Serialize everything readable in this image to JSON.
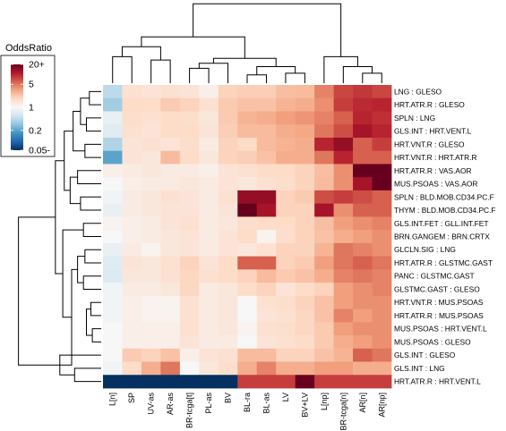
{
  "chart_data": {
    "type": "heatmap",
    "legend": {
      "title": "OddsRatio",
      "labels": [
        "20+",
        "5",
        "1",
        "0.2",
        "0.05-"
      ],
      "label_values": [
        20,
        5,
        1,
        0.2,
        0.05
      ],
      "scale": "log",
      "range": [
        0.05,
        20
      ],
      "colors_low_to_high": [
        "#053061",
        "#2166ac",
        "#4393c3",
        "#92c5de",
        "#d1e5f0",
        "#f7f7f7",
        "#fddbc7",
        "#f4a582",
        "#d6604d",
        "#b2182b",
        "#67001f"
      ]
    },
    "columns": [
      "L[n]",
      "SP",
      "UV-as",
      "AR-as",
      "BR-tcga[t]",
      "PL-as",
      "BV",
      "BL-ra",
      "BL-as",
      "LV",
      "BV+LV",
      "L[np]",
      "BR-tcga[n]",
      "AR[n]",
      "AR[np]"
    ],
    "rows": [
      "LNG : GLESO",
      "HRT.ATR.R : GLESO",
      "SPLN : LNG",
      "GLS.INT : HRT.VENT.L",
      "HRT.VNT.R : GLESO",
      "HRT.VNT.R : HRT.ATR.R",
      "HRT.ATR.R : VAS.AOR",
      "MUS.PSOAS : VAS.AOR",
      "SPLN : BLD.MOB.CD34.PC.F",
      "THYM : BLD.MOB.CD34.PC.F",
      "GLS.INT.FET : GLL.INT.FET",
      "BRN.GANGEM : BRN.CRTX",
      "GLCLN.SIG : LNG",
      "HRT.ATR.R : GLSTMC.GAST",
      "PANC : GLSTMC.GAST",
      "GLSTMC.GAST : GLESO",
      "HRT.VNT.R : MUS.PSOAS",
      "HRT.ATR.R : MUS.PSOAS",
      "MUS.PSOAS : HRT.VENT.L",
      "MUS.PSOAS : GLESO",
      "GLS.INT : GLESO",
      "GLS.INT : LNG",
      "HRT.ATR.R : HRT.VENT.L"
    ],
    "values": [
      [
        0.45,
        1.6,
        1.5,
        1.6,
        1.5,
        1.2,
        2.0,
        2.1,
        2.1,
        2.5,
        2.6,
        4.5,
        7.5,
        8.5,
        7.5
      ],
      [
        0.35,
        1.8,
        1.8,
        2.2,
        2.0,
        1.6,
        2.2,
        2.4,
        2.4,
        2.8,
        3.0,
        4.0,
        8.0,
        9.5,
        10.0
      ],
      [
        0.8,
        1.7,
        1.6,
        1.8,
        1.7,
        1.4,
        2.2,
        2.8,
        3.0,
        3.5,
        3.8,
        4.5,
        6.0,
        10.0,
        9.0
      ],
      [
        0.7,
        1.6,
        1.5,
        1.8,
        1.8,
        1.5,
        2.1,
        2.6,
        2.6,
        3.0,
        3.2,
        5.0,
        7.0,
        12.0,
        10.0
      ],
      [
        0.4,
        1.5,
        1.6,
        1.5,
        1.7,
        1.3,
        2.0,
        1.8,
        2.6,
        2.8,
        3.0,
        10.0,
        14.0,
        6.0,
        8.0
      ],
      [
        0.2,
        1.5,
        1.4,
        2.6,
        1.8,
        1.4,
        2.0,
        2.1,
        2.4,
        3.0,
        3.0,
        5.0,
        10.0,
        6.0,
        6.0
      ],
      [
        1.2,
        1.3,
        1.4,
        1.3,
        1.3,
        1.2,
        1.5,
        1.6,
        1.8,
        1.8,
        2.0,
        2.5,
        4.0,
        20,
        20
      ],
      [
        1.0,
        1.2,
        1.3,
        1.3,
        1.4,
        1.3,
        1.5,
        1.4,
        1.6,
        1.7,
        2.0,
        2.6,
        4.0,
        12.0,
        20
      ],
      [
        0.9,
        1.3,
        1.4,
        1.6,
        1.5,
        1.3,
        1.6,
        14.0,
        14.0,
        2.0,
        2.2,
        7.0,
        8.0,
        7.0,
        6.0
      ],
      [
        0.8,
        1.3,
        1.4,
        1.5,
        1.5,
        1.3,
        1.5,
        20,
        12.0,
        2.0,
        2.0,
        12.0,
        4.0,
        6.0,
        6.0
      ],
      [
        1.1,
        1.2,
        1.3,
        1.5,
        1.6,
        1.3,
        1.4,
        1.7,
        1.8,
        1.8,
        2.0,
        2.5,
        3.5,
        4.0,
        4.5
      ],
      [
        1.0,
        1.2,
        1.3,
        1.4,
        1.5,
        1.3,
        1.5,
        1.8,
        1.1,
        1.7,
        2.0,
        2.4,
        3.0,
        3.5,
        4.0
      ],
      [
        0.8,
        1.3,
        1.1,
        1.4,
        1.5,
        1.3,
        1.5,
        1.4,
        1.6,
        2.0,
        2.0,
        2.8,
        5.0,
        4.5,
        4.0
      ],
      [
        0.7,
        1.5,
        1.4,
        1.6,
        2.0,
        1.5,
        1.8,
        6.0,
        6.0,
        2.0,
        2.2,
        3.5,
        5.0,
        6.0,
        5.0
      ],
      [
        0.65,
        1.4,
        1.4,
        1.6,
        1.9,
        1.6,
        1.8,
        2.0,
        2.6,
        2.2,
        2.4,
        3.0,
        4.5,
        5.0,
        4.5
      ],
      [
        0.9,
        1.3,
        1.3,
        1.4,
        1.9,
        1.3,
        1.4,
        1.8,
        2.0,
        1.5,
        1.8,
        2.0,
        3.5,
        4.0,
        4.5
      ],
      [
        0.9,
        1.2,
        1.1,
        1.1,
        1.6,
        1.3,
        1.4,
        1.0,
        1.6,
        1.7,
        2.0,
        2.4,
        3.5,
        4.0,
        4.0
      ],
      [
        0.9,
        1.2,
        1.1,
        1.1,
        1.6,
        1.3,
        1.4,
        1.0,
        1.5,
        1.6,
        1.9,
        2.4,
        4.5,
        3.5,
        4.0
      ],
      [
        1.0,
        1.2,
        1.2,
        1.2,
        1.6,
        1.3,
        1.4,
        1.1,
        1.6,
        1.7,
        1.9,
        2.2,
        3.5,
        4.0,
        4.0
      ],
      [
        1.0,
        1.2,
        1.2,
        1.2,
        1.5,
        1.3,
        1.3,
        1.0,
        1.5,
        1.6,
        1.8,
        2.2,
        3.0,
        3.5,
        4.0
      ],
      [
        1.0,
        2.2,
        2.0,
        2.4,
        1.2,
        1.5,
        1.6,
        2.6,
        2.6,
        2.0,
        2.0,
        2.4,
        2.8,
        6.0,
        5.0
      ],
      [
        0.9,
        1.8,
        3.0,
        5.0,
        1.0,
        1.4,
        1.7,
        3.0,
        4.5,
        3.0,
        3.0,
        3.5,
        3.5,
        3.0,
        3.0
      ],
      [
        0.05,
        0.05,
        0.05,
        0.05,
        0.05,
        0.05,
        0.05,
        8.0,
        8.0,
        8.0,
        20,
        8.0,
        8.0,
        8.0,
        8.0
      ]
    ],
    "row_dendrogram": [
      [
        21,
        22,
        0.9
      ],
      [
        20,
        -1,
        1.4
      ],
      [
        18,
        19,
        0.3
      ],
      [
        16,
        17,
        0.35
      ],
      [
        -4,
        -3,
        0.5
      ],
      [
        14,
        15,
        0.6
      ],
      [
        12,
        13,
        0.55
      ],
      [
        -7,
        -6,
        0.8
      ],
      [
        -2,
        -8,
        1.0
      ],
      [
        10,
        11,
        0.6
      ],
      [
        -10,
        -9,
        1.3
      ],
      [
        8,
        9,
        0.7
      ],
      [
        6,
        7,
        0.8
      ],
      [
        -13,
        -12,
        1.05
      ],
      [
        4,
        5,
        0.55
      ],
      [
        2,
        3,
        0.5
      ],
      [
        0,
        1,
        0.4
      ],
      [
        -17,
        -16,
        0.7
      ],
      [
        -15,
        -18,
        0.95
      ],
      [
        -14,
        -19,
        1.25
      ],
      [
        -11,
        -20,
        1.55
      ],
      [
        -21,
        -2,
        2.8
      ]
    ],
    "column_dendrogram": [
      [
        0,
        1,
        0.8
      ],
      [
        2,
        3,
        0.7
      ],
      [
        -2,
        -1,
        1.1
      ],
      [
        4,
        5,
        0.45
      ],
      [
        -4,
        6,
        0.6
      ],
      [
        7,
        8,
        0.25
      ],
      [
        9,
        10,
        0.3
      ],
      [
        -6,
        -7,
        0.5
      ],
      [
        -5,
        -8,
        0.75
      ],
      [
        -3,
        -9,
        1.4
      ],
      [
        13,
        14,
        0.3
      ],
      [
        12,
        -11,
        0.5
      ],
      [
        11,
        -12,
        0.8
      ],
      [
        -10,
        -13,
        2.4
      ]
    ]
  }
}
